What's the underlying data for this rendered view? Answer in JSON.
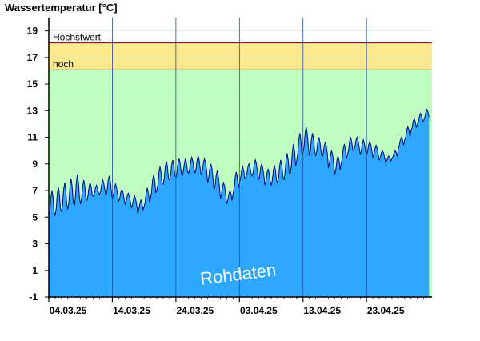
{
  "chart_data": {
    "type": "area",
    "title": "Wassertemperatur [°C]",
    "ylim": [
      -1,
      20
    ],
    "y_ticks": [
      19,
      17,
      15,
      13,
      11,
      9,
      7,
      5,
      3,
      1,
      -1
    ],
    "x_range": [
      "2025-03-04",
      "2025-05-03"
    ],
    "x_ticks": [
      "04.03.25",
      "14.03.25",
      "24.03.25",
      "03.04.25",
      "13.04.25",
      "23.04.25"
    ],
    "bands": [
      {
        "name": "hoch",
        "from": 16.1,
        "to": 18.1,
        "color": "#fde98e"
      },
      {
        "name": "Höchstwert",
        "value": 18.1,
        "color": "#8b1a3a"
      }
    ],
    "normal_band_color": "#bfffbf",
    "area_color": "#2ea8ff",
    "line_color": "#00008b",
    "watermark": "Rohdaten",
    "series": [
      {
        "x": [
          "2025-03-04",
          "2025-03-05",
          "2025-03-06",
          "2025-03-07",
          "2025-03-08",
          "2025-03-09",
          "2025-03-10",
          "2025-03-11",
          "2025-03-12",
          "2025-03-13",
          "2025-03-14",
          "2025-03-15",
          "2025-03-16",
          "2025-03-17",
          "2025-03-18",
          "2025-03-19",
          "2025-03-20",
          "2025-03-21",
          "2025-03-22",
          "2025-03-23",
          "2025-03-24",
          "2025-03-25",
          "2025-03-26",
          "2025-03-27",
          "2025-03-28",
          "2025-03-29",
          "2025-03-30",
          "2025-03-31",
          "2025-04-01",
          "2025-04-02",
          "2025-04-03",
          "2025-04-04",
          "2025-04-05",
          "2025-04-06",
          "2025-04-07",
          "2025-04-08",
          "2025-04-09",
          "2025-04-10",
          "2025-04-11",
          "2025-04-12",
          "2025-04-13",
          "2025-04-14",
          "2025-04-15",
          "2025-04-16",
          "2025-04-17",
          "2025-04-18",
          "2025-04-19",
          "2025-04-20",
          "2025-04-21",
          "2025-04-22",
          "2025-04-23",
          "2025-04-24",
          "2025-04-25",
          "2025-04-26",
          "2025-04-27",
          "2025-04-28",
          "2025-04-29",
          "2025-04-30",
          "2025-05-01",
          "2025-05-02"
        ],
        "min": [
          4.9,
          5.1,
          5.4,
          5.6,
          5.8,
          6.0,
          6.3,
          6.6,
          6.7,
          6.6,
          6.4,
          6.2,
          6.0,
          5.7,
          5.3,
          5.8,
          6.4,
          7.0,
          7.5,
          7.8,
          8.0,
          8.1,
          8.3,
          8.3,
          8.2,
          7.6,
          7.0,
          6.4,
          6.0,
          6.8,
          7.6,
          8.0,
          8.1,
          7.8,
          7.4,
          7.4,
          7.6,
          7.8,
          8.3,
          9.2,
          9.8,
          9.6,
          9.6,
          9.5,
          8.7,
          8.2,
          9.0,
          9.7,
          10.0,
          9.7,
          9.7,
          9.5,
          9.3,
          9.1,
          9.4,
          10.2,
          10.8,
          11.5,
          12.0,
          12.3
        ],
        "max": [
          7.0,
          7.3,
          7.6,
          7.9,
          8.2,
          7.8,
          7.6,
          7.4,
          7.8,
          8.1,
          7.5,
          7.1,
          6.8,
          6.6,
          6.3,
          7.2,
          8.2,
          8.8,
          9.2,
          9.3,
          9.4,
          9.4,
          9.5,
          9.6,
          9.4,
          9.0,
          8.5,
          7.6,
          7.0,
          8.4,
          8.8,
          9.0,
          9.3,
          9.0,
          8.6,
          8.9,
          9.3,
          9.8,
          10.5,
          11.3,
          11.8,
          11.3,
          11.0,
          10.6,
          10.0,
          9.6,
          10.5,
          11.0,
          11.0,
          10.8,
          10.7,
          10.4,
          10.0,
          9.6,
          10.0,
          11.0,
          11.8,
          12.4,
          12.8,
          13.1
        ]
      }
    ]
  }
}
